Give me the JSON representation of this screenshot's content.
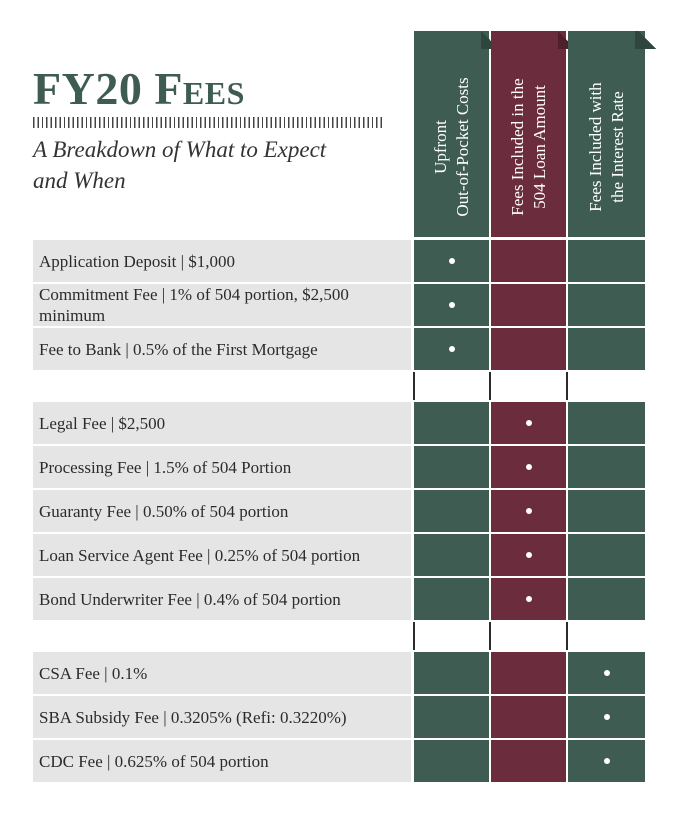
{
  "header": {
    "title": "FY20 Fees",
    "subtitle": "A Breakdown of What to Expect and When"
  },
  "columns": [
    {
      "label": "Upfront\nOut-of-Pocket Costs",
      "color": "#3e5c52"
    },
    {
      "label": "Fees Included in the\n504 Loan Amount",
      "color": "#6b2c3e"
    },
    {
      "label": "Fees Included with\nthe Interest Rate",
      "color": "#3e5c52"
    }
  ],
  "groups": [
    {
      "rows": [
        {
          "label": "Application Deposit | $1,000",
          "marks": [
            true,
            false,
            false
          ]
        },
        {
          "label": "Commitment Fee | 1% of 504 portion, $2,500 minimum",
          "marks": [
            true,
            false,
            false
          ]
        },
        {
          "label": "Fee to Bank | 0.5% of the First Mortgage",
          "marks": [
            true,
            false,
            false
          ]
        }
      ]
    },
    {
      "rows": [
        {
          "label": "Legal Fee | $2,500",
          "marks": [
            false,
            true,
            false
          ]
        },
        {
          "label": "Processing Fee | 1.5% of 504 Portion",
          "marks": [
            false,
            true,
            false
          ]
        },
        {
          "label": "Guaranty Fee | 0.50% of 504 portion",
          "marks": [
            false,
            true,
            false
          ]
        },
        {
          "label": "Loan Service Agent Fee | 0.25% of 504 portion",
          "marks": [
            false,
            true,
            false
          ]
        },
        {
          "label": "Bond Underwriter Fee | 0.4% of 504 portion",
          "marks": [
            false,
            true,
            false
          ]
        }
      ]
    },
    {
      "rows": [
        {
          "label": "CSA Fee | 0.1%",
          "marks": [
            false,
            false,
            true
          ]
        },
        {
          "label": "SBA Subsidy Fee | 0.3205% (Refi:  0.3220%)",
          "marks": [
            false,
            false,
            true
          ]
        },
        {
          "label": "CDC Fee | 0.625% of 504 portion",
          "marks": [
            false,
            false,
            true
          ]
        }
      ]
    }
  ]
}
